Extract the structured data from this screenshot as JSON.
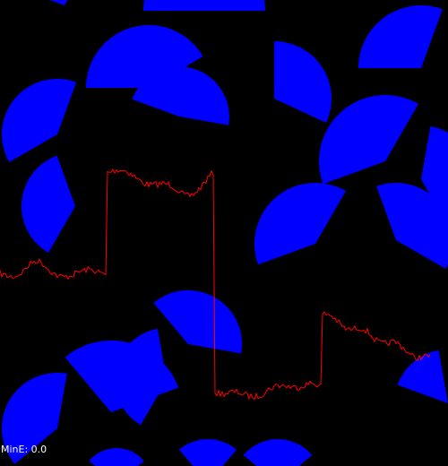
{
  "hud": {
    "min_energy": "MinE: 0.0"
  },
  "colors": {
    "background": "#000000",
    "wedge_fill": "#0000ff",
    "signal_trace": "#ff0000",
    "hud_text": "#ffffff"
  }
}
